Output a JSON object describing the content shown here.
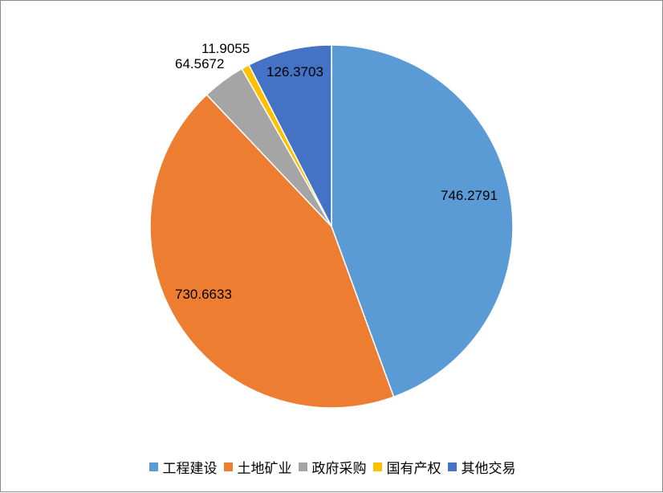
{
  "chart_data": {
    "type": "pie",
    "title": "",
    "legend_position": "bottom",
    "slices": [
      {
        "name": "工程建设",
        "value": 746.2791,
        "label": "746.2791",
        "color": "#5b9bd5"
      },
      {
        "name": "土地矿业",
        "value": 730.6633,
        "label": "730.6633",
        "color": "#ed7d31"
      },
      {
        "name": "政府采购",
        "value": 64.5672,
        "label": "64.5672",
        "color": "#a5a5a5"
      },
      {
        "name": "国有产权",
        "value": 11.9055,
        "label": "11.9055",
        "color": "#ffc000"
      },
      {
        "name": "其他交易",
        "value": 126.3703,
        "label": "126.3703",
        "color": "#4472c4"
      }
    ]
  }
}
